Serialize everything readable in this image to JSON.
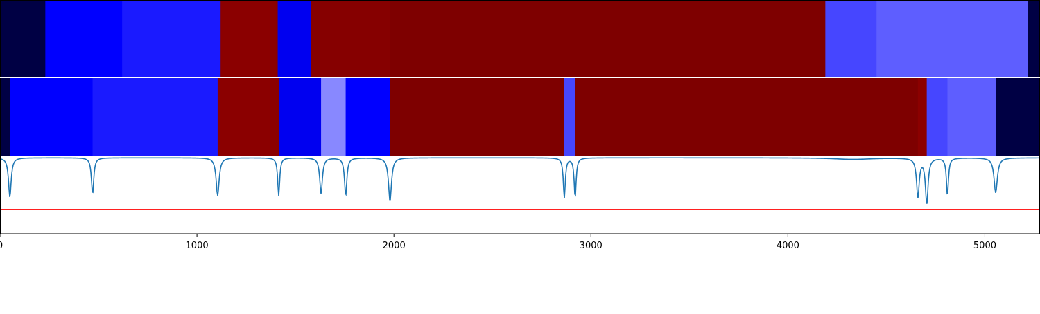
{
  "chart_data": {
    "type": "heatmap",
    "x_range": [
      0,
      5280
    ],
    "x_ticks": [
      0,
      1000,
      2000,
      3000,
      4000,
      5000
    ],
    "x_tick_labels": [
      "0",
      "1000",
      "2000",
      "3000",
      "4000",
      "5000"
    ],
    "tracks": [
      {
        "segments": [
          {
            "start": 0,
            "end": 230,
            "color": "#000044"
          },
          {
            "start": 230,
            "end": 620,
            "color": "#0000ff"
          },
          {
            "start": 620,
            "end": 1120,
            "color": "#1a1aff"
          },
          {
            "start": 1120,
            "end": 1410,
            "color": "#8b0000"
          },
          {
            "start": 1410,
            "end": 1580,
            "color": "#0000f0"
          },
          {
            "start": 1580,
            "end": 1980,
            "color": "#860000"
          },
          {
            "start": 1980,
            "end": 4190,
            "color": "#7e0000"
          },
          {
            "start": 4190,
            "end": 4450,
            "color": "#4646ff"
          },
          {
            "start": 4450,
            "end": 5220,
            "color": "#5e5eff"
          },
          {
            "start": 5220,
            "end": 5280,
            "color": "#000044"
          }
        ]
      },
      {
        "segments": [
          {
            "start": 0,
            "end": 50,
            "color": "#000044"
          },
          {
            "start": 50,
            "end": 470,
            "color": "#0000ff"
          },
          {
            "start": 470,
            "end": 1105,
            "color": "#1a1aff"
          },
          {
            "start": 1105,
            "end": 1415,
            "color": "#8b0000"
          },
          {
            "start": 1415,
            "end": 1630,
            "color": "#0000f0"
          },
          {
            "start": 1630,
            "end": 1755,
            "color": "#8888ff"
          },
          {
            "start": 1755,
            "end": 1980,
            "color": "#0000ff"
          },
          {
            "start": 1980,
            "end": 2865,
            "color": "#7e0000"
          },
          {
            "start": 2865,
            "end": 2920,
            "color": "#4646ff"
          },
          {
            "start": 2920,
            "end": 4660,
            "color": "#7e0000"
          },
          {
            "start": 4660,
            "end": 4705,
            "color": "#8b0000"
          },
          {
            "start": 4705,
            "end": 4810,
            "color": "#4646ff"
          },
          {
            "start": 4810,
            "end": 5055,
            "color": "#5e5eff"
          },
          {
            "start": 5055,
            "end": 5280,
            "color": "#000044"
          }
        ]
      }
    ],
    "signal": {
      "color": "#1f77b4",
      "baseline": 1.0,
      "y_range": [
        0,
        1.02
      ],
      "dips": [
        {
          "x": 50,
          "depth": 0.52,
          "width": 8
        },
        {
          "x": 470,
          "depth": 0.48,
          "width": 7
        },
        {
          "x": 1105,
          "depth": 0.5,
          "width": 9
        },
        {
          "x": 1415,
          "depth": 0.5,
          "width": 6
        },
        {
          "x": 1630,
          "depth": 0.47,
          "width": 8
        },
        {
          "x": 1755,
          "depth": 0.5,
          "width": 7
        },
        {
          "x": 1980,
          "depth": 0.57,
          "width": 9
        },
        {
          "x": 2865,
          "depth": 0.53,
          "width": 6
        },
        {
          "x": 2920,
          "depth": 0.52,
          "width": 6
        },
        {
          "x": 4330,
          "depth": 0.02,
          "width": 120
        },
        {
          "x": 4660,
          "depth": 0.51,
          "width": 8
        },
        {
          "x": 4705,
          "depth": 0.6,
          "width": 8
        },
        {
          "x": 4810,
          "depth": 0.5,
          "width": 6
        },
        {
          "x": 5055,
          "depth": 0.46,
          "width": 10
        }
      ]
    },
    "threshold": {
      "value": 0.32,
      "color": "#ff0000"
    }
  }
}
